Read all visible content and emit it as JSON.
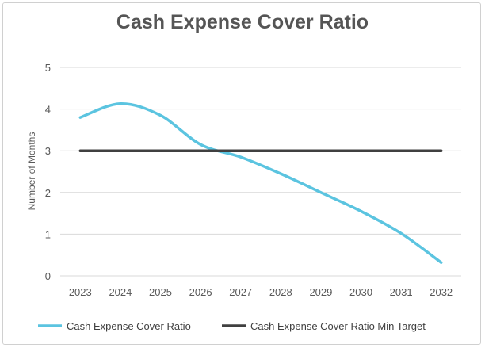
{
  "chart_data": {
    "type": "line",
    "title": "Cash Expense Cover Ratio",
    "xlabel": "",
    "ylabel": "Number of Months",
    "ylim": [
      0,
      5
    ],
    "yticks": [
      0,
      1,
      2,
      3,
      4,
      5
    ],
    "categories": [
      "2023",
      "2024",
      "2025",
      "2026",
      "2027",
      "2028",
      "2029",
      "2030",
      "2031",
      "2032"
    ],
    "grid": true,
    "legend_position": "bottom",
    "series": [
      {
        "name": "Cash Expense Cover Ratio",
        "color": "#5bc4e0",
        "values": [
          3.8,
          4.13,
          3.85,
          3.15,
          2.85,
          2.45,
          2.0,
          1.55,
          1.02,
          0.32
        ]
      },
      {
        "name": "Cash Expense Cover Ratio Min Target",
        "color": "#404040",
        "values": [
          3,
          3,
          3,
          3,
          3,
          3,
          3,
          3,
          3,
          3
        ]
      }
    ]
  }
}
